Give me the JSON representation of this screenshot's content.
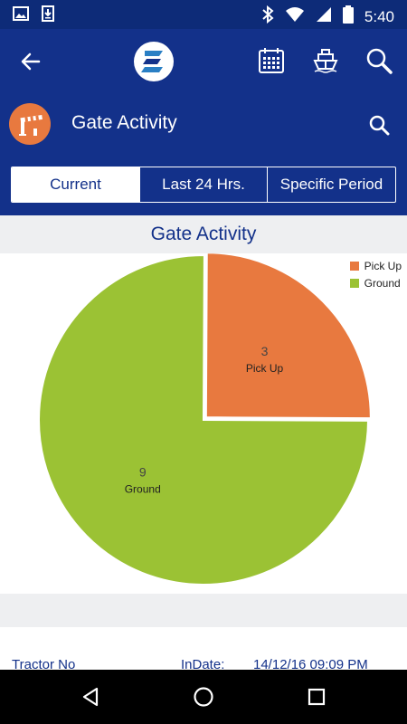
{
  "status_bar": {
    "time": "5:40",
    "icons": [
      "image-icon",
      "download-icon",
      "bluetooth-icon",
      "wifi-icon",
      "signal-icon",
      "battery-icon"
    ]
  },
  "app_bar": {
    "icons": [
      "back-arrow-icon",
      "app-logo-icon",
      "calendar-icon",
      "ship-icon",
      "search-icon"
    ]
  },
  "sub_header": {
    "title": "Gate Activity",
    "avatar_icon": "gate-barrier-icon",
    "search_icon": "search-icon"
  },
  "tabs": [
    {
      "label": "Current",
      "active": true
    },
    {
      "label": "Last 24 Hrs.",
      "active": false
    },
    {
      "label": "Specific Period",
      "active": false
    }
  ],
  "chart_header": "Gate Activity",
  "chart_data": {
    "type": "pie",
    "title": "",
    "categories": [
      "Pick Up",
      "Ground"
    ],
    "values": [
      3,
      9
    ],
    "colors": [
      "#e8793f",
      "#9bc234"
    ],
    "legend": "top-right",
    "data_labels": true
  },
  "detail": {
    "col1": "Tractor No",
    "col2": "InDate:",
    "col3": "14/12/16 09:09 PM"
  },
  "colors": {
    "status_bar": "#0d2b78",
    "primary": "#13318a",
    "accent_orange": "#e8793f",
    "green": "#9bc234"
  }
}
